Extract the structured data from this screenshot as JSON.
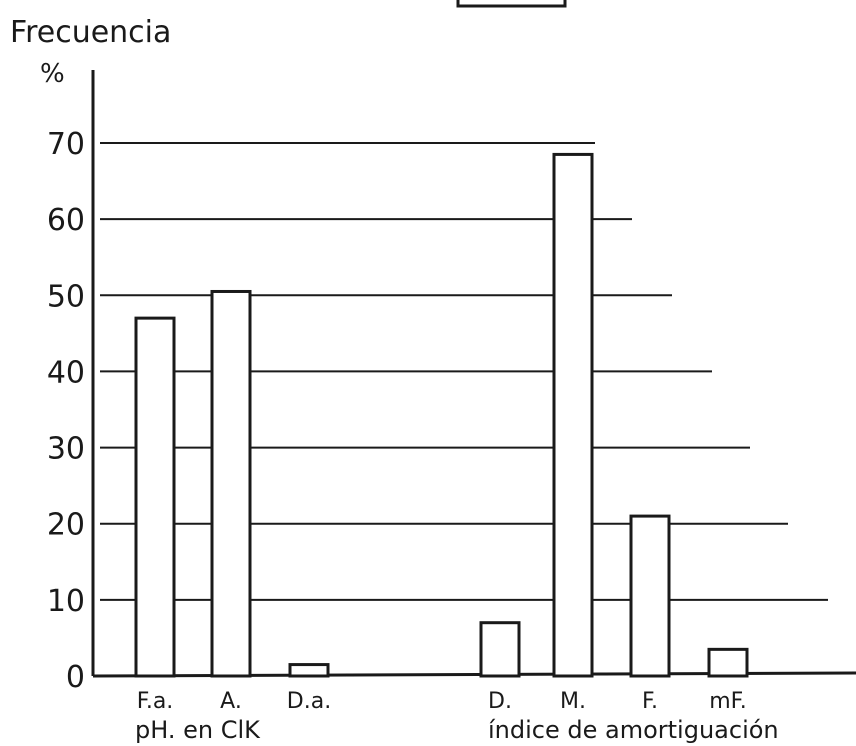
{
  "chart_data": {
    "type": "bar",
    "ylabel": "Frecuencia",
    "yunit": "%",
    "ylim": [
      0,
      70
    ],
    "yticks": [
      "0",
      "10",
      "20",
      "30",
      "40",
      "50",
      "60",
      "70"
    ],
    "grid": true,
    "groups": [
      {
        "xlabel": "pH. en ClK",
        "categories": [
          "F.a.",
          "A.",
          "D.a."
        ],
        "values": [
          47,
          50.5,
          1.5
        ]
      },
      {
        "xlabel": "índice de amortiguación",
        "categories": [
          "D.",
          "M.",
          "F.",
          "mF."
        ],
        "values": [
          7,
          68.5,
          21,
          3.5
        ]
      }
    ]
  },
  "colors": {
    "ink": "#1a1a1a",
    "bar_fill": "#ffffff",
    "background": "#ffffff"
  }
}
